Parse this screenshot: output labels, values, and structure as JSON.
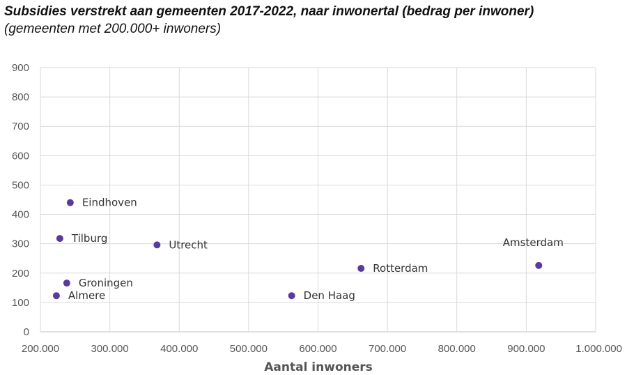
{
  "chart_data": {
    "type": "scatter",
    "title": "Subsidies verstrekt aan gemeenten 2017-2022, naar inwonertal (bedrag per inwoner)",
    "subtitle": "(gemeenten met 200.000+ inwoners)",
    "xlabel": "Aantal inwoners",
    "ylabel": "",
    "xlim": [
      200000,
      1000000
    ],
    "ylim": [
      0,
      900
    ],
    "x_ticks": [
      "200.000",
      "300.000",
      "400.000",
      "500.000",
      "600.000",
      "700.000",
      "800.000",
      "900.000",
      "1.000.000"
    ],
    "y_ticks": [
      "0",
      "100",
      "200",
      "300",
      "400",
      "500",
      "600",
      "700",
      "800",
      "900"
    ],
    "grid": true,
    "point_color": "#5b3a9e",
    "points": [
      {
        "label": "Eindhoven",
        "x": 243000,
        "y": 440
      },
      {
        "label": "Tilburg",
        "x": 228000,
        "y": 318
      },
      {
        "label": "Utrecht",
        "x": 368000,
        "y": 296
      },
      {
        "label": "Groningen",
        "x": 238000,
        "y": 166
      },
      {
        "label": "Almere",
        "x": 223000,
        "y": 123
      },
      {
        "label": "Den Haag",
        "x": 562000,
        "y": 123
      },
      {
        "label": "Rotterdam",
        "x": 662000,
        "y": 216
      },
      {
        "label": "Amsterdam",
        "x": 918000,
        "y": 226
      }
    ]
  }
}
